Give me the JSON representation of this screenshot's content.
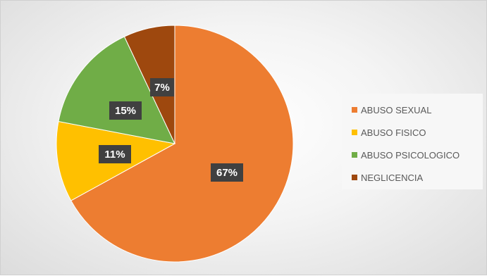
{
  "chart_data": {
    "type": "pie",
    "title": "",
    "categories": [
      "ABUSO SEXUAL",
      "ABUSO FISICO",
      "ABUSO PSICOLOGICO",
      "NEGLICENCIA"
    ],
    "values": [
      67,
      11,
      15,
      7
    ],
    "labels": [
      "67%",
      "11%",
      "15%",
      "7%"
    ],
    "colors": [
      "#ED7D31",
      "#FFC000",
      "#70AD47",
      "#9E480E"
    ],
    "start_angle_deg": 0,
    "direction": "clockwise",
    "legend_position": "right"
  }
}
